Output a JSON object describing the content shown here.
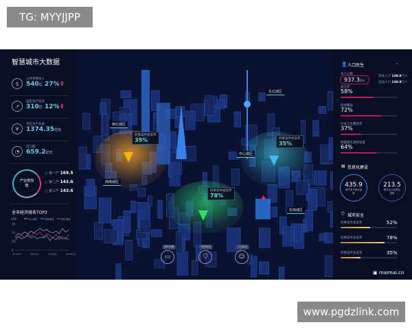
{
  "watermark_top": "TG: MYYJJPP",
  "watermark_bottom": "www.pgdzlink.com",
  "watermark_logo": "maimai.cn",
  "left": {
    "title": "智慧城市大数据",
    "metrics": [
      {
        "icon": "money-bag-icon",
        "label": "公共预算收入",
        "value": "540",
        "unit": "亿",
        "pct": "27%",
        "trend": "up"
      },
      {
        "icon": "trend-chart-icon",
        "label": "固定资产投资",
        "value": "310",
        "unit": "亿",
        "pct": "12%",
        "trend": "up"
      },
      {
        "icon": "yuan-icon",
        "label": "地区生产总值",
        "value": "1374.35",
        "unit": "亿元"
      },
      {
        "icon": "export-icon",
        "label": "出口额",
        "value": "659.2",
        "unit": "亿元"
      }
    ],
    "industry": {
      "center": "产业增加值",
      "items": [
        {
          "label": "第一产",
          "value": "169.5",
          "color": "#4fd0c8"
        },
        {
          "label": "第二产",
          "value": "143.6",
          "color": "#d8407a"
        },
        {
          "label": "第三产",
          "value": "143.6",
          "color": "#9aa4c4"
        }
      ]
    }
  },
  "chart_data": {
    "type": "line",
    "title": "全市经济排名TOP3",
    "ylabel": "GDP",
    "ylim": [
      0,
      30
    ],
    "yticks": [
      "0",
      "10",
      "20",
      "30"
    ],
    "xticks": [
      "20.18.1",
      "2018.4",
      "2018.8",
      "2018.12"
    ],
    "legend_placement": "top",
    "series": [
      {
        "name": "中心城区",
        "color": "#9aa4c4",
        "values": [
          16,
          19,
          18,
          21,
          19,
          22,
          20,
          23,
          25,
          22,
          24,
          21,
          20,
          22,
          19,
          25,
          21,
          23
        ]
      },
      {
        "name": "西南城区",
        "color": "#3fb8c8",
        "values": [
          14,
          16,
          13,
          15,
          17,
          14,
          16,
          13,
          15,
          14,
          17,
          11,
          15,
          12,
          16,
          13,
          14,
          12
        ]
      },
      {
        "name": "西北城区",
        "color": "#d8407a",
        "values": [
          11,
          15,
          17,
          14,
          19,
          16,
          20,
          18,
          21,
          15,
          19,
          17,
          14,
          18,
          12,
          16,
          13,
          18
        ]
      }
    ]
  },
  "center": {
    "districts": [
      "西北城区",
      "东北城区",
      "中心城区",
      "西南城区",
      "东南城区"
    ],
    "callouts": [
      {
        "label": "刑事案件发案率",
        "value": "35%"
      },
      {
        "label": "刑事案件发案率",
        "value": "35%"
      },
      {
        "label": "刑事案件破案率",
        "value": "78%"
      }
    ],
    "buttons": [
      {
        "label": "城市交通",
        "icon": "bus-icon"
      },
      {
        "label": "城市安全",
        "icon": "shield-icon"
      },
      {
        "label": "人口民生",
        "icon": "person-icon"
      }
    ]
  },
  "right": {
    "population": {
      "title": "人口民生",
      "total_label": "总人口数",
      "total": "937.3",
      "total_unit": "万人",
      "sub": [
        {
          "label": "常驻人口",
          "value": "138.9",
          "unit": "万人"
        },
        {
          "label": "流动人口",
          "value": "138.9",
          "unit": "万人"
        }
      ],
      "bars": [
        {
          "label": "就业率",
          "value": "58%",
          "pct": 58
        },
        {
          "label": "医保覆盖",
          "value": "72%",
          "pct": 72
        },
        {
          "label": "社会卫生覆盖率",
          "value": "37%",
          "pct": 37
        },
        {
          "label": "数据服务满意程度",
          "value": "64%",
          "pct": 64
        }
      ]
    },
    "info": {
      "title": "信息化建设",
      "rings": [
        {
          "value": "435.9",
          "label": "城市电子政务指数"
        },
        {
          "value": "213.5",
          "label": "城市企业信息化指数"
        }
      ]
    },
    "safety": {
      "title": "城市安全",
      "bars": [
        {
          "label": "刑事案件发案率",
          "value": "52%",
          "pct": 52
        },
        {
          "label": "刑事案件发案率",
          "value": "78%",
          "pct": 78
        },
        {
          "label": "刑事案件发案率",
          "value": "35%",
          "pct": 35
        }
      ]
    }
  }
}
